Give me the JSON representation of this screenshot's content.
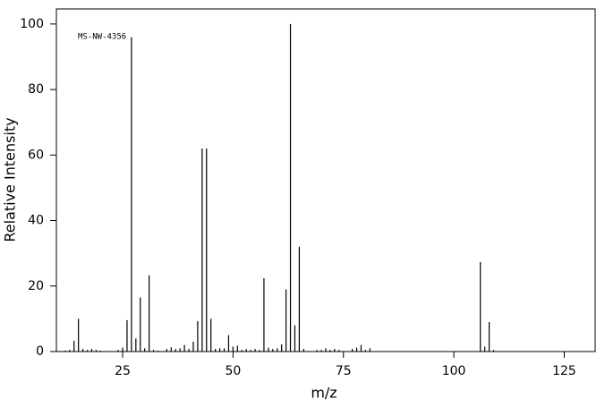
{
  "chart_data": {
    "type": "stem",
    "annotation": "MS-NW-4356",
    "xlabel": "m/z",
    "ylabel": "Relative Intensity",
    "xlim": [
      10,
      132
    ],
    "ylim": [
      0,
      104.6
    ],
    "xticks": [
      25,
      50,
      75,
      100,
      125
    ],
    "yticks": [
      0,
      20,
      40,
      60,
      80,
      100
    ],
    "color": "#000000",
    "x": [
      12,
      13,
      14,
      15,
      16,
      17,
      18,
      19,
      20,
      24,
      25,
      26,
      27,
      28,
      29,
      30,
      31,
      32,
      33,
      35,
      36,
      37,
      38,
      39,
      40,
      41,
      42,
      43,
      44,
      45,
      46,
      47,
      48,
      49,
      50,
      51,
      52,
      53,
      54,
      55,
      56,
      57,
      58,
      59,
      60,
      61,
      62,
      63,
      64,
      65,
      66,
      69,
      70,
      71,
      72,
      73,
      74,
      77,
      78,
      79,
      80,
      81,
      106,
      107,
      108,
      109
    ],
    "values": [
      0.3,
      0.5,
      3.3,
      10,
      0.8,
      0.5,
      0.8,
      0.5,
      0.3,
      0.5,
      1.2,
      9.6,
      96,
      4,
      16.5,
      1,
      23.3,
      0.5,
      0.3,
      0.8,
      1.3,
      0.8,
      1,
      2,
      0.8,
      3,
      9.3,
      62,
      62,
      10,
      0.8,
      1,
      1,
      5,
      1.5,
      1.8,
      0.5,
      0.8,
      0.5,
      0.8,
      0.5,
      22.4,
      1.2,
      0.8,
      1,
      2.2,
      19,
      100,
      8,
      32,
      0.8,
      0.5,
      0.5,
      1,
      0.5,
      0.8,
      0.5,
      0.8,
      1.2,
      2,
      0.5,
      1,
      27.3,
      1.5,
      9,
      0.5
    ]
  }
}
